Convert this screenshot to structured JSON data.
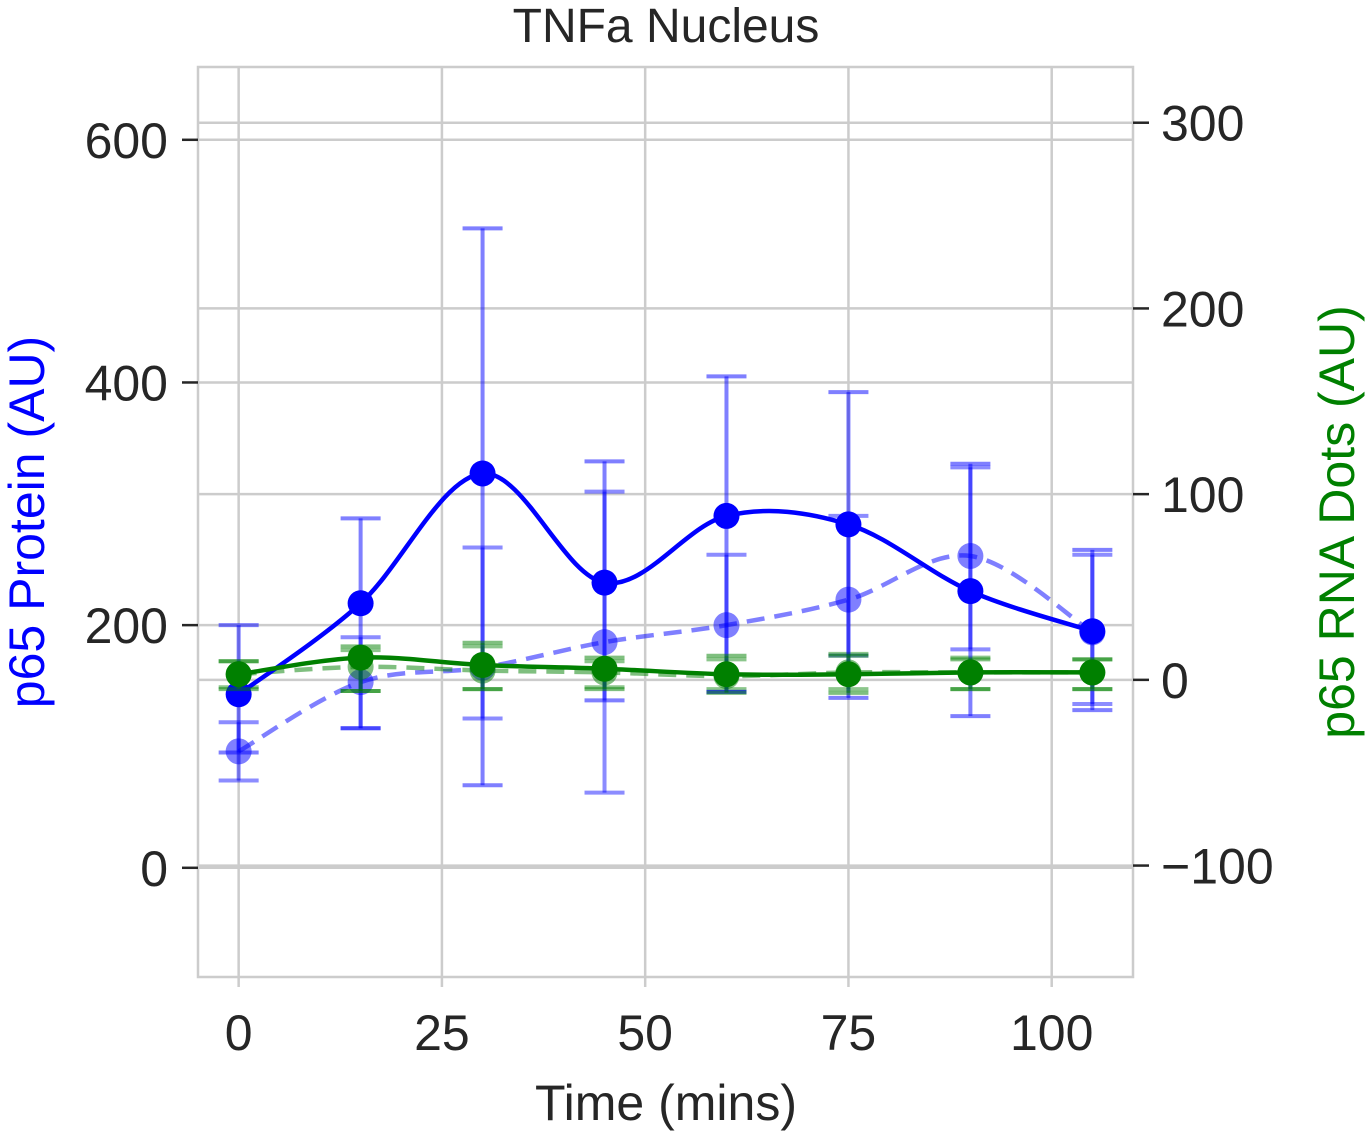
{
  "chart_data": {
    "type": "line",
    "title": "TNFa Nucleus",
    "xlabel": "Time (mins)",
    "ylabel_left": "p65 Protein (AU)",
    "ylabel_right": "p65 RNA Dots (AU)",
    "xlim": [
      -5,
      110
    ],
    "ylim_left": [
      -90,
      660
    ],
    "ylim_right": [
      -160,
      330
    ],
    "x_ticks": [
      0,
      25,
      50,
      75,
      100
    ],
    "x_tick_labels": [
      "0",
      "25",
      "50",
      "75",
      "100"
    ],
    "y_left_ticks": [
      0,
      200,
      400,
      600
    ],
    "y_left_tick_labels": [
      "0",
      "200",
      "400",
      "600"
    ],
    "y_right_ticks": [
      -100,
      0,
      100,
      200,
      300
    ],
    "y_right_tick_labels": [
      "−100",
      "0",
      "100",
      "200",
      "300"
    ],
    "grid": true,
    "colors": {
      "protein": "#0000ff",
      "rna": "#008000",
      "grid": "#cccccc",
      "text": "#262626"
    },
    "series": [
      {
        "axis": "left",
        "color": "#0000ff",
        "style": "solid",
        "opacity": 1.0,
        "x": [
          0,
          15,
          30,
          45,
          60,
          75,
          90,
          105
        ],
        "y": [
          143,
          218,
          325,
          235,
          290,
          283,
          228,
          195
        ],
        "err_low": [
          95,
          115,
          68,
          138,
          145,
          140,
          125,
          130
        ],
        "err_high": [
          200,
          288,
          527,
          335,
          405,
          392,
          333,
          262
        ]
      },
      {
        "axis": "left",
        "color": "#0000ff",
        "style": "dashed",
        "opacity": 0.5,
        "x": [
          0,
          15,
          30,
          45,
          60,
          75,
          90,
          105
        ],
        "y": [
          96,
          153,
          165,
          186,
          200,
          221,
          257,
          194
        ],
        "err_low": [
          72,
          115,
          123,
          62,
          145,
          175,
          180,
          135
        ],
        "err_high": [
          120,
          190,
          264,
          310,
          258,
          290,
          330,
          258
        ]
      },
      {
        "axis": "right",
        "color": "#008000",
        "style": "solid",
        "opacity": 1.0,
        "x": [
          0,
          15,
          30,
          45,
          60,
          75,
          90,
          105
        ],
        "y": [
          3,
          12,
          8,
          6,
          3,
          3,
          4,
          4
        ],
        "err_low": [
          -5,
          -6,
          -5,
          -5,
          -7,
          -7,
          -5,
          -5
        ],
        "err_high": [
          10,
          18,
          20,
          12,
          13,
          13,
          11,
          11
        ]
      },
      {
        "axis": "right",
        "color": "#008000",
        "style": "dashed",
        "opacity": 0.5,
        "x": [
          0,
          15,
          30,
          45,
          60,
          75,
          90,
          105
        ],
        "y": [
          3,
          7,
          5,
          4,
          2,
          4,
          4,
          4
        ],
        "err_low": [
          -4,
          -6,
          -5,
          -4,
          -5,
          -5,
          -5,
          -5
        ],
        "err_high": [
          10,
          16,
          18,
          10,
          11,
          14,
          12,
          11
        ]
      }
    ]
  }
}
